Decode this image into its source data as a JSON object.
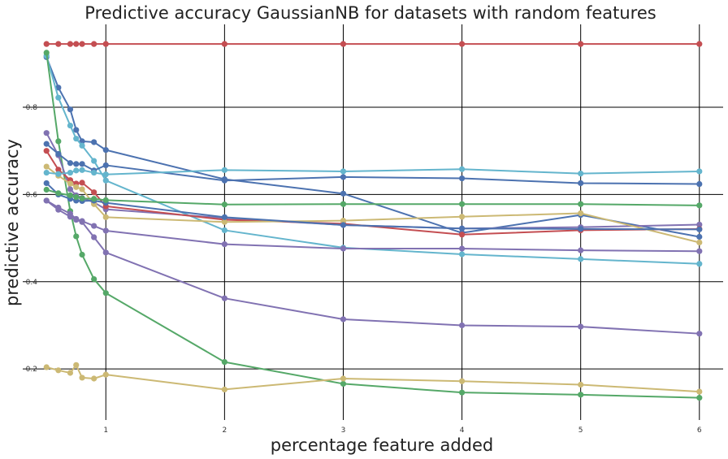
{
  "chart_data": {
    "type": "line",
    "title": "Predictive accuracy GaussianNB for datasets with random features",
    "xlabel": "percentage feature added",
    "ylabel": "predictive accuracy",
    "xlim": [
      0.3,
      6.2
    ],
    "ylim": [
      0.083,
      0.99
    ],
    "xticks": [
      1,
      2,
      3,
      4,
      5,
      6
    ],
    "xtick_labels": [
      "1",
      "2",
      "3",
      "4",
      "5",
      "6"
    ],
    "yticks": [
      0.2,
      0.4,
      0.6,
      0.8
    ],
    "ytick_labels": [
      "0.2",
      "0.4",
      "0.6",
      "0.8"
    ],
    "grid": true,
    "legend": "none",
    "x": [
      0.5,
      0.6,
      0.7,
      0.75,
      0.8,
      0.9,
      1,
      2,
      3,
      4,
      5,
      6
    ],
    "series": [
      {
        "color": "#c44e52",
        "values": [
          0.945,
          0.945,
          0.945,
          0.945,
          0.945,
          0.945,
          0.945,
          0.945,
          0.945,
          0.945,
          0.945,
          0.945
        ]
      },
      {
        "color": "#4c72b0",
        "values": [
          0.915,
          0.845,
          0.795,
          0.748,
          0.722,
          0.72,
          0.702,
          0.635,
          0.602,
          0.512,
          0.553,
          0.503
        ]
      },
      {
        "color": "#64b5cd",
        "values": [
          0.918,
          0.822,
          0.758,
          0.728,
          0.712,
          0.677,
          0.632,
          0.518,
          0.478,
          0.463,
          0.452,
          0.441
        ]
      },
      {
        "color": "#55a868",
        "values": [
          0.925,
          0.722,
          0.562,
          0.504,
          0.462,
          0.406,
          0.374,
          0.216,
          0.166,
          0.146,
          0.141,
          0.134
        ]
      },
      {
        "color": "#8172b2",
        "values": [
          0.741,
          0.69,
          0.612,
          0.598,
          0.592,
          0.582,
          0.566,
          0.546,
          0.53,
          0.522,
          0.525,
          0.531
        ]
      },
      {
        "color": "#4c72b0",
        "values": [
          0.716,
          0.693,
          0.672,
          0.67,
          0.67,
          0.655,
          0.667,
          0.632,
          0.64,
          0.637,
          0.626,
          0.624
        ]
      },
      {
        "color": "#c44e52",
        "values": [
          0.7,
          0.657,
          0.633,
          0.625,
          0.627,
          0.605,
          0.573,
          0.542,
          0.533,
          0.508,
          0.518,
          0.521
        ]
      },
      {
        "color": "#ccb974",
        "values": [
          0.664,
          0.643,
          0.625,
          0.617,
          0.612,
          0.578,
          0.548,
          0.537,
          0.54,
          0.549,
          0.557,
          0.49
        ]
      },
      {
        "color": "#64b5cd",
        "values": [
          0.65,
          0.647,
          0.65,
          0.655,
          0.656,
          0.65,
          0.646,
          0.656,
          0.653,
          0.658,
          0.648,
          0.653
        ]
      },
      {
        "color": "#4c72b0",
        "values": [
          0.626,
          0.6,
          0.59,
          0.586,
          0.585,
          0.586,
          0.581,
          0.548,
          0.53,
          0.522,
          0.521,
          0.52
        ]
      },
      {
        "color": "#55a868",
        "values": [
          0.611,
          0.603,
          0.598,
          0.594,
          0.591,
          0.59,
          0.587,
          0.577,
          0.578,
          0.578,
          0.578,
          0.575
        ]
      },
      {
        "color": "#8172b2",
        "values": [
          0.586,
          0.565,
          0.549,
          0.542,
          0.537,
          0.502,
          0.467,
          0.362,
          0.314,
          0.3,
          0.297,
          0.281
        ]
      },
      {
        "color": "#8172b2",
        "values": [
          0.586,
          0.57,
          0.556,
          0.544,
          0.539,
          0.528,
          0.517,
          0.486,
          0.476,
          0.476,
          0.472,
          0.47
        ]
      },
      {
        "color": "#ccb974",
        "values": [
          0.204,
          0.197,
          0.191,
          0.209,
          0.18,
          0.178,
          0.187,
          0.153,
          0.178,
          0.172,
          0.164,
          0.148
        ]
      }
    ]
  }
}
